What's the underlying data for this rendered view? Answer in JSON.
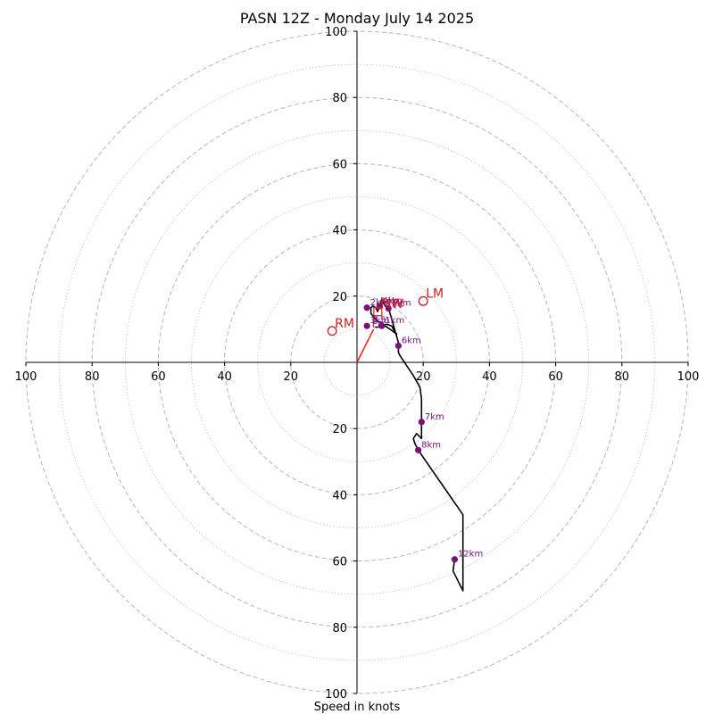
{
  "chart_data": {
    "type": "hodograph",
    "title": "PASN 12Z - Monday July 14 2025",
    "xlabel": "Speed in knots",
    "rings_major": [
      20,
      40,
      60,
      80,
      100
    ],
    "rings_minor": [
      10,
      30,
      50,
      70,
      90
    ],
    "ticks": {
      "x": [
        {
          "v": -100,
          "label": "100"
        },
        {
          "v": -80,
          "label": "80"
        },
        {
          "v": -60,
          "label": "60"
        },
        {
          "v": -40,
          "label": "40"
        },
        {
          "v": -20,
          "label": "20"
        },
        {
          "v": 20,
          "label": "20"
        },
        {
          "v": 40,
          "label": "40"
        },
        {
          "v": 60,
          "label": "60"
        },
        {
          "v": 80,
          "label": "80"
        },
        {
          "v": 100,
          "label": "100"
        }
      ],
      "y": [
        {
          "v": 100,
          "label": "100"
        },
        {
          "v": 80,
          "label": "80"
        },
        {
          "v": 60,
          "label": "60"
        },
        {
          "v": 40,
          "label": "40"
        },
        {
          "v": 20,
          "label": "20"
        },
        {
          "v": -20,
          "label": "20"
        },
        {
          "v": -40,
          "label": "40"
        },
        {
          "v": -60,
          "label": "60"
        },
        {
          "v": -80,
          "label": "80"
        },
        {
          "v": -100,
          "label": "100"
        }
      ]
    },
    "hodograph_line": [
      [
        5.5,
        10.5
      ],
      [
        7,
        10.8
      ],
      [
        9,
        11.5
      ],
      [
        10.5,
        11
      ],
      [
        11,
        10
      ],
      [
        12,
        8.5
      ],
      [
        10,
        10
      ],
      [
        8.5,
        11
      ],
      [
        7.5,
        12
      ],
      [
        6,
        12.5
      ],
      [
        4.2,
        14.8
      ],
      [
        4.2,
        16.5
      ],
      [
        4.8,
        17
      ],
      [
        5.7,
        16.5
      ],
      [
        6.2,
        15.3
      ],
      [
        7,
        17.5
      ],
      [
        7.5,
        19
      ],
      [
        8.5,
        17
      ],
      [
        9.5,
        16.5
      ],
      [
        12.5,
        6
      ],
      [
        12.5,
        3
      ],
      [
        13,
        2
      ],
      [
        17,
        -4
      ],
      [
        19,
        -7.5
      ],
      [
        19.5,
        -11
      ],
      [
        19.5,
        -18
      ],
      [
        19.5,
        -23
      ],
      [
        18,
        -21.5
      ],
      [
        17,
        -23
      ],
      [
        17.5,
        -24.5
      ],
      [
        18.5,
        -26.5
      ],
      [
        32,
        -46
      ],
      [
        32,
        -69
      ],
      [
        29,
        -63
      ],
      [
        29.5,
        -59.5
      ]
    ],
    "height_points": [
      {
        "label": "1km",
        "u": 7.5,
        "v": 11
      },
      {
        "label": "3km",
        "u": 3,
        "v": 11
      },
      {
        "label": "2km",
        "u": 3,
        "v": 16.5
      },
      {
        "label": "4km",
        "u": 6.8,
        "v": 17
      },
      {
        "label": "5km",
        "u": 9.5,
        "v": 16.3
      },
      {
        "label": "6km",
        "u": 12.5,
        "v": 5
      },
      {
        "label": "7km",
        "u": 19.5,
        "v": -18
      },
      {
        "label": "8km",
        "u": 18.5,
        "v": -26.5
      },
      {
        "label": "12km",
        "u": 29.5,
        "v": -59.5
      }
    ],
    "storm_motion_line": [
      [
        0,
        0
      ],
      [
        5,
        10
      ]
    ],
    "storm_markers": [
      {
        "label": "RM",
        "u": -7.5,
        "v": 9.5
      },
      {
        "label": "LM",
        "u": 20,
        "v": 18.5
      },
      {
        "label": "MW",
        "u": 6.3,
        "v": 15.3
      }
    ],
    "extra_labels": [
      {
        "label": "Bnk",
        "u": 7,
        "v": 17.7
      },
      {
        "label": "Mc",
        "u": 10.5,
        "v": 16.8
      },
      {
        "label": "0.5",
        "u": 4.5,
        "v": 12
      },
      {
        "label": "EL",
        "u": 4.5,
        "v": 10.7
      }
    ]
  },
  "colors": {
    "ring": "#bdbdbd",
    "axis": "#000000",
    "hodograph": "#000000",
    "height_point": "#7a0f7a",
    "storm": "#cc1f1f",
    "storm_motion": "#ff1a1a"
  }
}
